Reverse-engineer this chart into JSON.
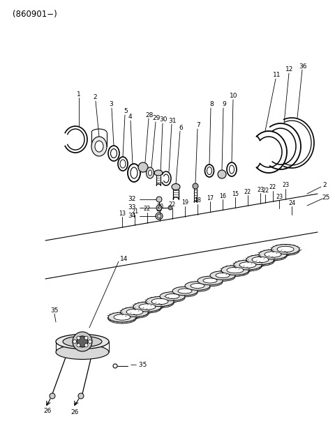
{
  "title": "(860901−)",
  "background_color": "#ffffff",
  "line_color": "#000000",
  "text_color": "#000000",
  "figsize": [
    4.8,
    6.24
  ],
  "dpi": 100
}
